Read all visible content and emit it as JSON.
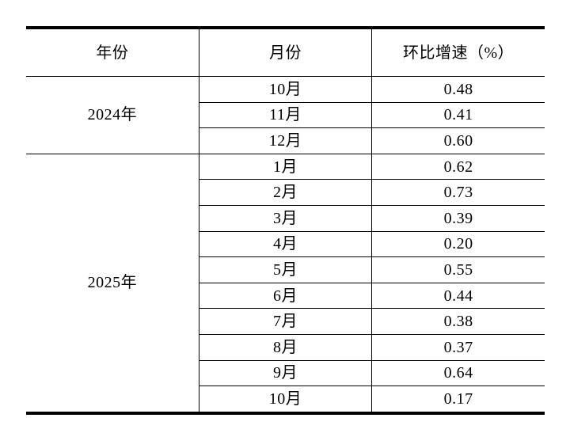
{
  "page": {
    "background": "#ffffff"
  },
  "table": {
    "columns": [
      "年份",
      "月份",
      "环比增速（%）"
    ],
    "sections": [
      {
        "year": "2024年",
        "rows": [
          {
            "month": "10月",
            "value": "0.48"
          },
          {
            "month": "11月",
            "value": "0.41"
          },
          {
            "month": "12月",
            "value": "0.60"
          }
        ]
      },
      {
        "year": "2025年",
        "rows": [
          {
            "month": "1月",
            "value": "0.62"
          },
          {
            "month": "2月",
            "value": "0.73"
          },
          {
            "month": "3月",
            "value": "0.39"
          },
          {
            "month": "4月",
            "value": "0.20"
          },
          {
            "month": "5月",
            "value": "0.55"
          },
          {
            "month": "6月",
            "value": "0.44"
          },
          {
            "month": "7月",
            "value": "0.38"
          },
          {
            "month": "8月",
            "value": "0.37"
          },
          {
            "month": "9月",
            "value": "0.64"
          },
          {
            "month": "10月",
            "value": "0.17"
          }
        ]
      }
    ],
    "colors": {
      "border": "#000000",
      "text": "#000000",
      "background": "#ffffff"
    }
  }
}
